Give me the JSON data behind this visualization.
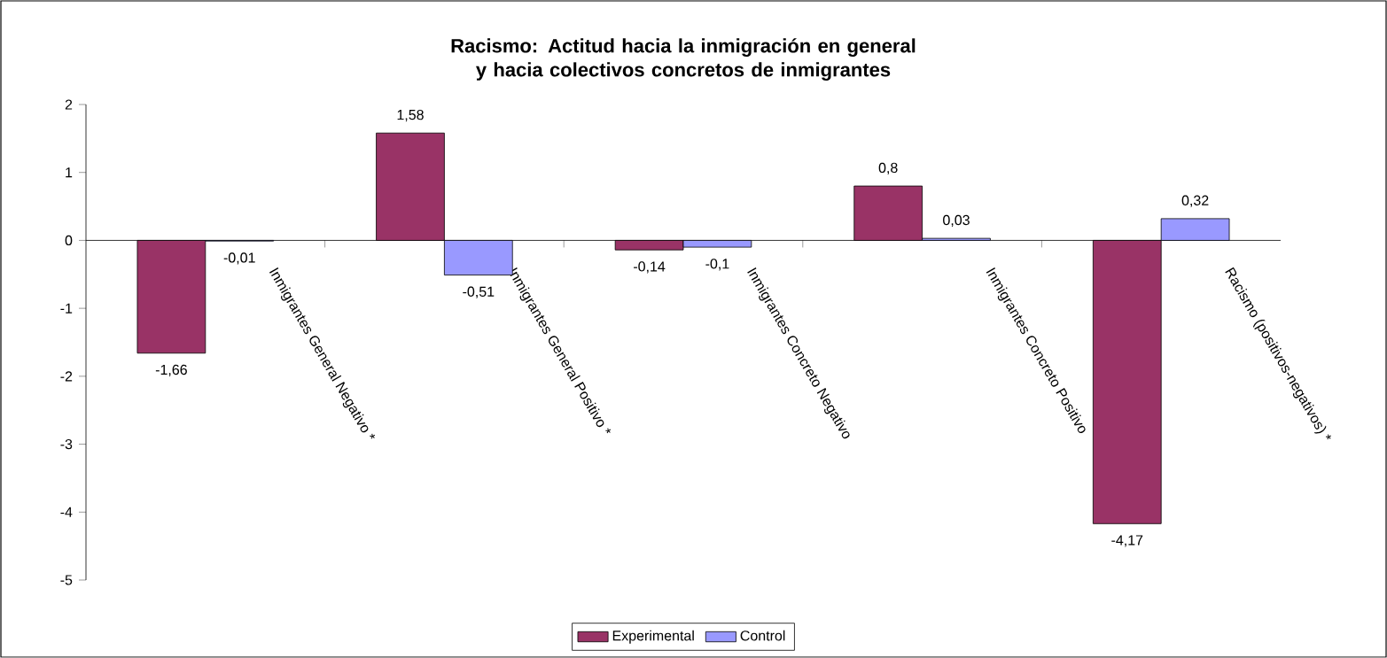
{
  "chart_data": {
    "type": "bar",
    "title": "Racismo: Actitud hacia la inmigración en general y hacia colectivos concretos de inmigrantes",
    "categories": [
      "Inmigrantes General Negativo  *",
      "Inmigrantes General Positivo *",
      "Inmigrantes Concreto Negativo",
      "Inmigrantes Concreto Positivo",
      "Racismo (positivos-negativos) *"
    ],
    "series": [
      {
        "name": "Experimental",
        "color": "#993366",
        "values": [
          -1.66,
          1.58,
          -0.14,
          0.8,
          -4.17
        ],
        "value_labels": [
          "-1,66",
          "1,58",
          "-0,14",
          "0,8",
          "-4,17"
        ]
      },
      {
        "name": "Control",
        "color": "#9999ff",
        "values": [
          -0.01,
          -0.51,
          -0.1,
          0.03,
          0.32
        ],
        "value_labels": [
          "-0,01",
          "-0,51",
          "-0,1",
          "0,03",
          "0,32"
        ]
      }
    ],
    "ylim": [
      -5,
      2
    ],
    "yticks": [
      -5,
      -4,
      -3,
      -2,
      -1,
      0,
      1,
      2
    ],
    "legend": "bottom"
  }
}
